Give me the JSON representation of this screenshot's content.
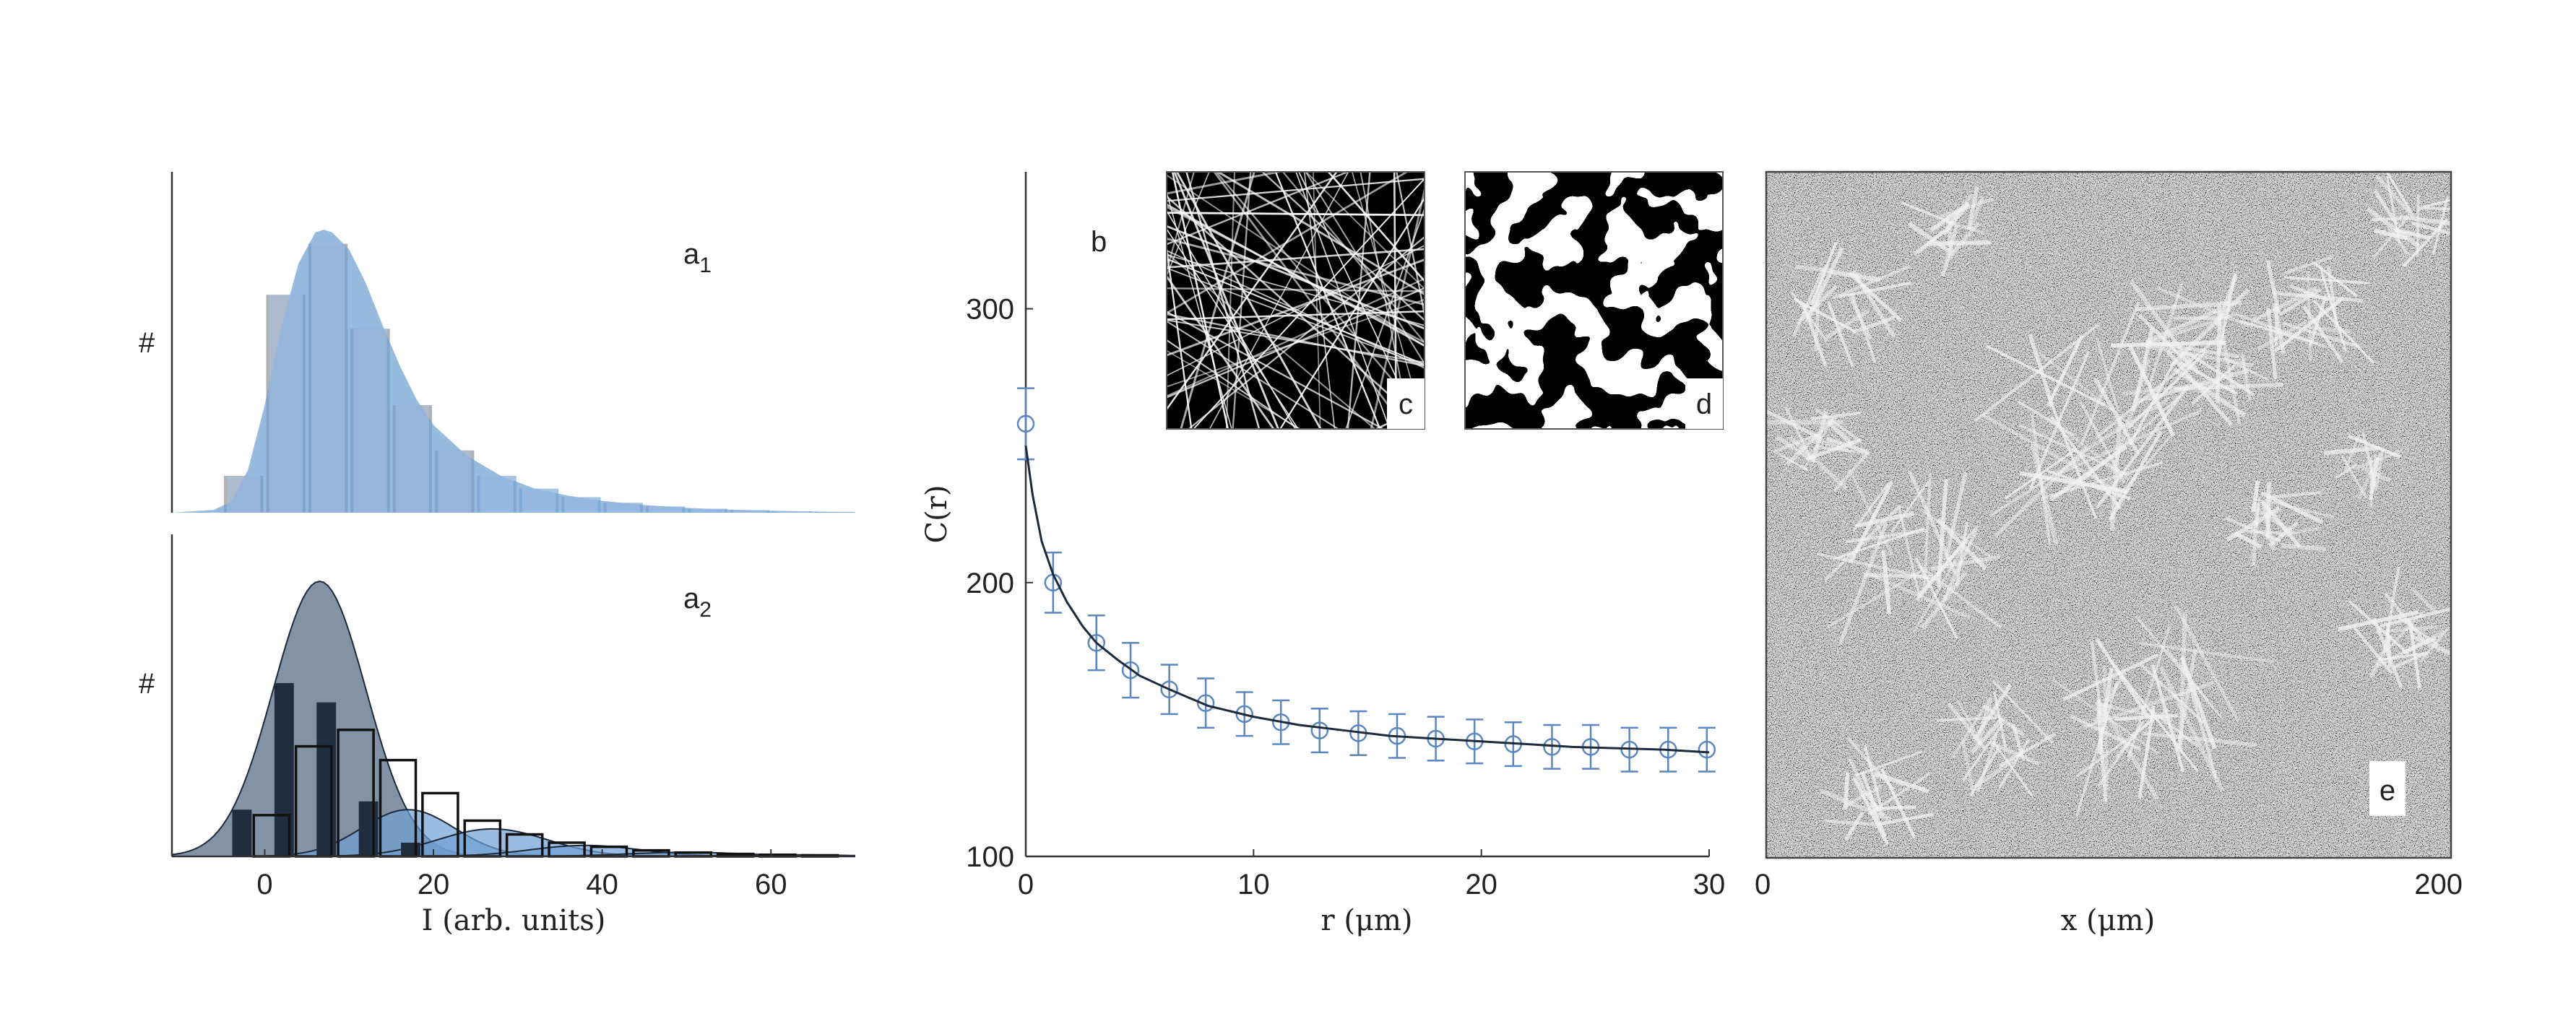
{
  "colors": {
    "blue_fill": "#6f9fd3",
    "grey_bar": "#b2b2b2",
    "light_bar": "#a9c3e6",
    "dark_fill": "#6d8096",
    "dark_bar": "#1f2d3f",
    "navy": "#1c2a3c",
    "errorbar_blue": "#5b86c0"
  },
  "chart_data": [
    {
      "type": "bar",
      "id": "a1",
      "panel_label": "a",
      "panel_label_sub": "1",
      "ylabel": "#",
      "xlim": [
        -11,
        70
      ],
      "bins_center": [
        -2.5,
        2.5,
        7.5,
        12.5,
        17.5,
        22.5,
        27.5,
        32.5,
        37.5,
        42.5,
        47.5,
        52.5,
        57.5,
        62.5,
        67.5
      ],
      "values": [
        0.13,
        0.77,
        0.95,
        0.65,
        0.38,
        0.22,
        0.13,
        0.085,
        0.055,
        0.035,
        0.022,
        0.014,
        0.009,
        0.005,
        0.003
      ],
      "fit_curve": {
        "x": [
          -11,
          -6,
          -4,
          -2,
          0,
          2,
          4,
          6,
          7,
          8,
          10,
          12,
          14,
          16,
          18,
          20,
          24,
          28,
          32,
          36,
          40,
          45,
          50,
          55,
          60,
          65,
          70
        ],
        "y": [
          0,
          0.01,
          0.04,
          0.15,
          0.38,
          0.66,
          0.88,
          0.99,
          1.0,
          0.99,
          0.93,
          0.81,
          0.66,
          0.52,
          0.4,
          0.31,
          0.2,
          0.13,
          0.085,
          0.06,
          0.042,
          0.027,
          0.017,
          0.011,
          0.007,
          0.004,
          0.002
        ]
      }
    },
    {
      "type": "bar",
      "id": "a2",
      "panel_label": "a",
      "panel_label_sub": "2",
      "ylabel": "#",
      "xlabel": "I (arb. units)",
      "xlim": [
        -11,
        70
      ],
      "xticks": [
        0,
        20,
        40,
        60
      ],
      "dark_bars": {
        "x": [
          -2.5,
          2.5,
          7.5,
          12.5,
          17.5
        ],
        "values": [
          0.17,
          0.63,
          0.56,
          0.2,
          0.05
        ]
      },
      "outline_bars": {
        "x": [
          0.8,
          5.8,
          10.8,
          15.8,
          20.8,
          25.8,
          30.8,
          35.8,
          40.8,
          45.8,
          50.8,
          55.8,
          60.8,
          65.8
        ],
        "values": [
          0.15,
          0.4,
          0.46,
          0.35,
          0.23,
          0.13,
          0.08,
          0.05,
          0.035,
          0.022,
          0.014,
          0.009,
          0.006,
          0.004
        ]
      },
      "gaussians": [
        {
          "center": 6.5,
          "sigma": 5.5,
          "height": 1.0
        },
        {
          "center": 17,
          "sigma": 5.5,
          "height": 0.17
        },
        {
          "center": 27,
          "sigma": 6.5,
          "height": 0.1
        },
        {
          "center": 38,
          "sigma": 6.5,
          "height": 0.04
        },
        {
          "center": 50,
          "sigma": 7,
          "height": 0.015
        },
        {
          "center": 62,
          "sigma": 7,
          "height": 0.006
        }
      ]
    },
    {
      "type": "line",
      "id": "b",
      "panel_label": "b",
      "xlabel": "r (μm)",
      "ylabel": "C(r)",
      "xlim": [
        0,
        30
      ],
      "ylim": [
        100,
        350
      ],
      "xticks": [
        0,
        10,
        20,
        30
      ],
      "yticks": [
        100,
        200,
        300
      ],
      "points": {
        "x": [
          0,
          1.2,
          3.1,
          4.6,
          6.3,
          7.9,
          9.6,
          11.2,
          12.9,
          14.6,
          16.3,
          18.0,
          19.7,
          21.4,
          23.1,
          24.8,
          26.5,
          28.2,
          29.9
        ],
        "y": [
          258,
          200,
          178,
          168,
          161,
          156,
          152,
          149,
          146,
          145,
          144,
          143,
          142,
          141,
          140,
          140,
          139,
          139,
          139
        ],
        "err": [
          13,
          11,
          10,
          10,
          9,
          9,
          8,
          8,
          8,
          8,
          8,
          8,
          8,
          8,
          8,
          8,
          8,
          8,
          8
        ]
      },
      "fit": {
        "x": [
          0,
          0.3,
          0.7,
          1.2,
          1.8,
          2.5,
          3.1,
          4.0,
          5.0,
          6.3,
          8,
          10,
          12,
          14,
          16,
          18,
          20,
          22,
          24,
          26,
          28,
          30
        ],
        "y": [
          250,
          232,
          215,
          203,
          193,
          184,
          178,
          172,
          166,
          161,
          155,
          151,
          148,
          146,
          144,
          143,
          142,
          141,
          140,
          139.5,
          139,
          138
        ]
      },
      "insets": [
        {
          "id": "c",
          "label": "c"
        },
        {
          "id": "d",
          "label": "d"
        }
      ]
    },
    {
      "type": "heatmap",
      "id": "e",
      "panel_label": "e",
      "xlabel": "x (μm)",
      "xticks": [
        0,
        200
      ]
    }
  ]
}
